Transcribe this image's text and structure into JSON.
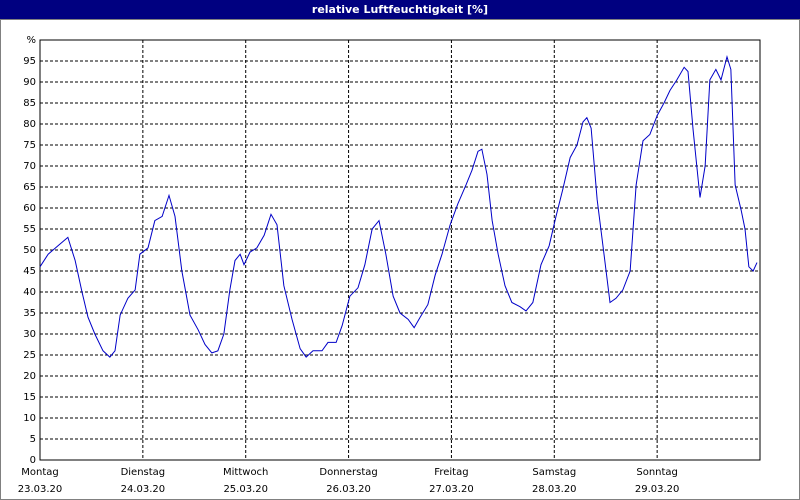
{
  "chart_data": {
    "type": "line",
    "title": "relative Luftfeuchtigkeit [%]",
    "xlim": [
      0,
      168
    ],
    "xticks": [
      {
        "value": 0,
        "label": "Montag",
        "date": "23.03.20"
      },
      {
        "value": 24,
        "label": "Dienstag",
        "date": "24.03.20"
      },
      {
        "value": 48,
        "label": "Mittwoch",
        "date": "25.03.20"
      },
      {
        "value": 72,
        "label": "Donnerstag",
        "date": "26.03.20"
      },
      {
        "value": 96,
        "label": "Freitag",
        "date": "27.03.20"
      },
      {
        "value": 120,
        "label": "Samstag",
        "date": "28.03.20"
      },
      {
        "value": 144,
        "label": "Sonntag",
        "date": "29.03.20"
      }
    ],
    "ylim": [
      0,
      100
    ],
    "yticks": [
      0,
      5,
      10,
      15,
      20,
      25,
      30,
      35,
      40,
      45,
      50,
      55,
      60,
      65,
      70,
      75,
      80,
      85,
      90,
      95,
      {
        "value": 100,
        "label": "%"
      }
    ],
    "grid": true,
    "series": [
      {
        "color": "#0000c8",
        "x": [
          0,
          1.9,
          4.2,
          6.5,
          8.2,
          9.8,
          11.2,
          12.8,
          14.7,
          16.3,
          17.5,
          18.7,
          20.5,
          22.2,
          23.3,
          25.2,
          26.8,
          28.5,
          30.1,
          31.5,
          33.1,
          35,
          36.9,
          38.5,
          40.1,
          41.5,
          42.9,
          44.3,
          45.5,
          46.7,
          47.6,
          49,
          50.6,
          52.3,
          53.9,
          55.3,
          56.9,
          58.8,
          60.7,
          62.1,
          63.7,
          65.8,
          67.2,
          69.1,
          70.5,
          72.3,
          74.2,
          75.8,
          77.5,
          79.1,
          80.7,
          82.4,
          84,
          85.9,
          87.3,
          88.7,
          90.5,
          92.2,
          93.8,
          95.7,
          97.5,
          99.4,
          100.8,
          102.2,
          103.1,
          104.3,
          105.5,
          106.9,
          108.5,
          110.1,
          112,
          113.4,
          115,
          116.9,
          118.8,
          120.4,
          122,
          123.7,
          125.3,
          126.7,
          127.6,
          128.6,
          130,
          131.6,
          133,
          134.4,
          136,
          137.7,
          139.1,
          140.7,
          142.3,
          144,
          145.6,
          147,
          148.6,
          150.3,
          151.2,
          152.4,
          154,
          155.2,
          156.3,
          157.7,
          158.9,
          160.3,
          161.2,
          162.2,
          163.6,
          164.5,
          165.4,
          166.4,
          167.3
        ],
        "values": [
          46,
          49,
          51,
          53,
          47.5,
          40,
          34,
          30,
          26,
          24.5,
          26,
          34.5,
          38.5,
          40.5,
          49,
          50.5,
          57,
          58,
          63,
          58,
          45,
          34.5,
          31,
          27.5,
          25.5,
          26,
          30,
          40.5,
          47.5,
          49,
          46.5,
          49.5,
          50.5,
          53.5,
          58.5,
          56,
          41.5,
          33.5,
          26.5,
          24.5,
          26,
          26,
          28,
          28,
          32,
          39,
          41,
          46.5,
          55,
          57,
          49,
          39,
          35,
          33.5,
          31.5,
          34,
          37,
          44,
          49,
          56,
          61,
          65.5,
          69,
          73.5,
          74,
          68,
          57,
          49,
          41.5,
          37.5,
          36.5,
          35.5,
          37.5,
          46.5,
          51,
          58,
          64.5,
          72,
          75,
          80.5,
          81.5,
          79,
          62,
          49,
          37.5,
          38.5,
          40.5,
          45,
          65.5,
          76,
          77.5,
          82,
          85,
          88,
          90.5,
          93.5,
          92.5,
          78.5,
          62.5,
          70,
          90.5,
          93,
          90.5,
          96,
          93,
          65.5,
          59.5,
          55,
          46,
          45,
          47
        ]
      }
    ]
  }
}
